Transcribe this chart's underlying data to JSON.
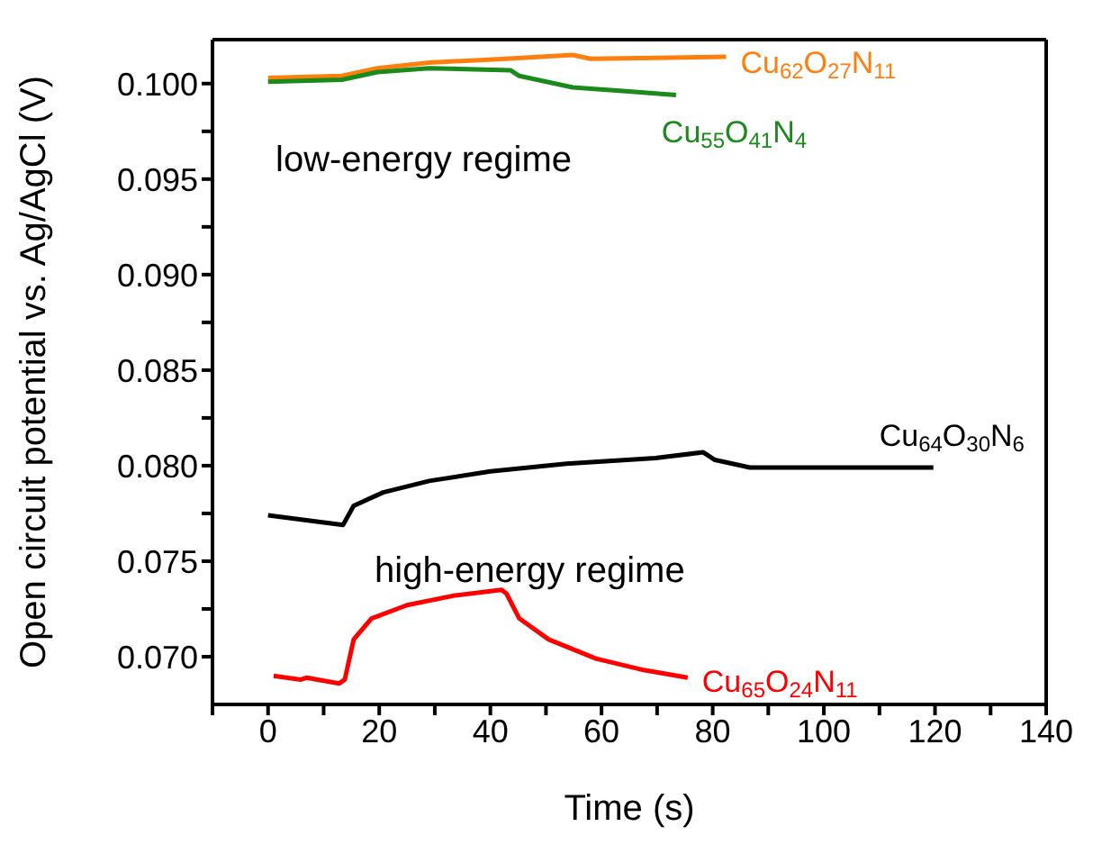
{
  "chart_data": {
    "type": "line",
    "xlabel": "Time (s)",
    "ylabel": "Open circuit potential vs. Ag/AgCl (V)",
    "xlim": [
      -10,
      140
    ],
    "xticks": [
      {
        "value": -10,
        "label": null
      },
      0,
      {
        "value": 10,
        "label": null
      },
      20,
      {
        "value": 30,
        "label": null
      },
      40,
      {
        "value": 50,
        "label": null
      },
      60,
      {
        "value": 70,
        "label": null
      },
      80,
      {
        "value": 90,
        "label": null
      },
      100,
      {
        "value": 110,
        "label": null
      },
      120,
      {
        "value": 130,
        "label": null
      },
      140
    ],
    "ylim": [
      0.0675,
      0.1023
    ],
    "yticks": [
      {
        "value": 0.07,
        "label": "0.070"
      },
      {
        "value": 0.0725,
        "label": null
      },
      {
        "value": 0.075,
        "label": "0.075"
      },
      {
        "value": 0.0775,
        "label": null
      },
      {
        "value": 0.08,
        "label": "0.080"
      },
      {
        "value": 0.0825,
        "label": null
      },
      {
        "value": 0.085,
        "label": "0.085"
      },
      {
        "value": 0.0875,
        "label": null
      },
      {
        "value": 0.09,
        "label": "0.090"
      },
      {
        "value": 0.0925,
        "label": null
      },
      {
        "value": 0.095,
        "label": "0.095"
      },
      {
        "value": 0.0975,
        "label": null
      },
      {
        "value": 0.1,
        "label": "0.100"
      }
    ],
    "grid": false,
    "marker": "none",
    "line_style": "solid",
    "annotations": [
      "low-energy regime",
      "high-energy regime"
    ],
    "series": [
      {
        "name": "Cu$_{62}$O$_{27}$N$_{11}$",
        "color": "#ff7f0e",
        "x": [
          0,
          13.3,
          19.7,
          29,
          42.8,
          54.8,
          58,
          82.4
        ],
        "values": [
          0.1003,
          0.1004,
          0.1008,
          0.1011,
          0.1013,
          0.1015,
          0.1013,
          0.1014
        ]
      },
      {
        "name": "Cu$_{55}$O$_{41}$N$_{4}$",
        "color": "#1a8a1a",
        "x": [
          0,
          13.3,
          19.7,
          29,
          43.6,
          45.2,
          54.8,
          64.4,
          73.4
        ],
        "values": [
          0.1001,
          0.1002,
          0.1006,
          0.1008,
          0.1007,
          0.1004,
          0.0998,
          0.0996,
          0.0994
        ]
      },
      {
        "name": "Cu$_{64}$O$_{30}$N$_{6}$",
        "color": "#000000",
        "x": [
          0,
          13.5,
          15.4,
          20.7,
          29,
          40,
          53.7,
          69.7,
          78.3,
          80.4,
          86.7,
          96,
          119.7
        ],
        "values": [
          0.0774,
          0.0769,
          0.0779,
          0.0786,
          0.0792,
          0.0797,
          0.0801,
          0.0804,
          0.0807,
          0.0803,
          0.0799,
          0.0799,
          0.0799
        ]
      },
      {
        "name": "Cu$_{65}$O$_{24}$N$_{11}$",
        "color": "#ff0000",
        "x": [
          1,
          5.9,
          6.9,
          12.8,
          13.8,
          15.4,
          18.6,
          25,
          33.5,
          42,
          42.9,
          45.2,
          50.5,
          59,
          67.6,
          75.5
        ],
        "values": [
          0.069,
          0.0688,
          0.0689,
          0.0686,
          0.0688,
          0.0709,
          0.072,
          0.0727,
          0.0732,
          0.0735,
          0.0733,
          0.072,
          0.0709,
          0.0699,
          0.0693,
          0.0689
        ]
      }
    ]
  }
}
